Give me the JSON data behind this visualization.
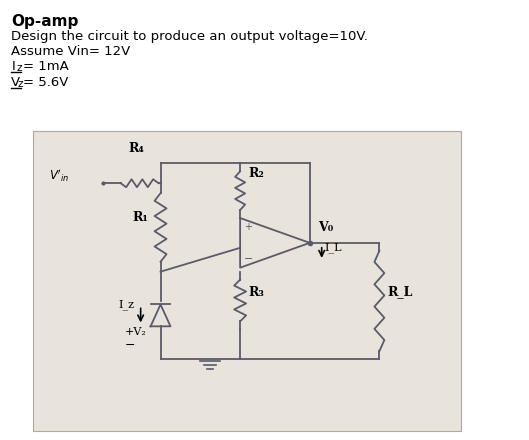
{
  "title_bold": "Op-amp",
  "line1": "Design the circuit to produce an output voltage=10V.",
  "line2": "Assume Vin= 12V",
  "line3_prefix": "I",
  "line3_sub": "z",
  "line3_rest": "= 1mA",
  "line4_prefix": "V",
  "line4_sub": "z",
  "line4_rest": "= 5.6V",
  "bg_color": "#e8e4dc",
  "outer_bg": "#ffffff",
  "lc": "#5a5a6a",
  "lw": 1.3
}
